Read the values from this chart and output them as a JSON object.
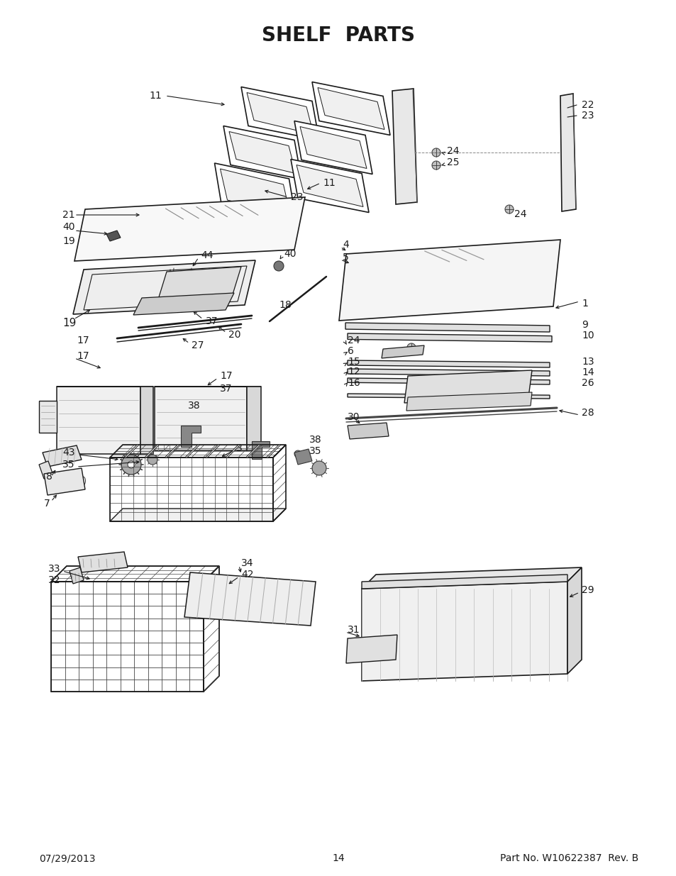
{
  "title": "SHELF  PARTS",
  "footer_left": "07/29/2013",
  "footer_center": "14",
  "footer_right": "Part No. W10622387  Rev. B",
  "bg_color": "#ffffff",
  "title_fontsize": 20,
  "footer_fontsize": 10,
  "line_color": "#1a1a1a",
  "label_fontsize": 10
}
